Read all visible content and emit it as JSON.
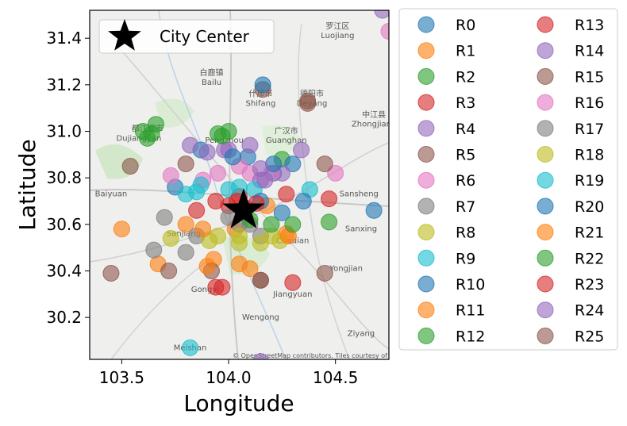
{
  "chart_data": {
    "type": "scatter",
    "title": "",
    "xlabel": "Longitude",
    "ylabel": "Latitude",
    "xlim": [
      103.35,
      104.75
    ],
    "ylim": [
      30.02,
      31.52
    ],
    "xticks": [
      103.5,
      104.0,
      104.5
    ],
    "xtick_labels": [
      "103.5",
      "104.0",
      "104.5"
    ],
    "yticks": [
      30.2,
      30.4,
      30.6,
      30.8,
      31.0,
      31.2,
      31.4
    ],
    "ytick_labels": [
      "30.2",
      "30.4",
      "30.6",
      "30.8",
      "31.0",
      "31.2",
      "31.4"
    ],
    "grid": false,
    "basemap_attribution": "© OpenStreetMap contributors. Tiles courtesy of",
    "map_labels": [
      {
        "text": "什邡市",
        "lon": 104.15,
        "lat": 31.15
      },
      {
        "text": "Shifang",
        "lon": 104.15,
        "lat": 31.11
      },
      {
        "text": "德阳市",
        "lon": 104.39,
        "lat": 31.15
      },
      {
        "text": "Deyang",
        "lon": 104.39,
        "lat": 31.11
      },
      {
        "text": "罗江区",
        "lon": 104.51,
        "lat": 31.44
      },
      {
        "text": "Luojiang",
        "lon": 104.51,
        "lat": 31.4
      },
      {
        "text": "中江县",
        "lon": 104.68,
        "lat": 31.06
      },
      {
        "text": "Zhongjiang",
        "lon": 104.68,
        "lat": 31.02
      },
      {
        "text": "白鹿镇",
        "lon": 103.92,
        "lat": 31.24
      },
      {
        "text": "Bailu",
        "lon": 103.92,
        "lat": 31.2
      },
      {
        "text": "都江堰市",
        "lon": 103.62,
        "lat": 31.0
      },
      {
        "text": "Dujiangyan",
        "lon": 103.58,
        "lat": 30.96
      },
      {
        "text": "广汉市",
        "lon": 104.27,
        "lat": 30.99
      },
      {
        "text": "Guanghan",
        "lon": 104.27,
        "lat": 30.95
      },
      {
        "text": "Pengzhou",
        "lon": 103.98,
        "lat": 30.95
      },
      {
        "text": "Sansheng",
        "lon": 104.61,
        "lat": 30.72
      },
      {
        "text": "Sanxing",
        "lon": 104.62,
        "lat": 30.57
      },
      {
        "text": "Chadian",
        "lon": 104.3,
        "lat": 30.52
      },
      {
        "text": "Sanjiang",
        "lon": 103.79,
        "lat": 30.55
      },
      {
        "text": "Gongyi",
        "lon": 103.89,
        "lat": 30.31
      },
      {
        "text": "Jiangyuan",
        "lon": 104.3,
        "lat": 30.29
      },
      {
        "text": "Wengong",
        "lon": 104.15,
        "lat": 30.19
      },
      {
        "text": "Meishan",
        "lon": 103.82,
        "lat": 30.06
      },
      {
        "text": "Ziyang",
        "lon": 104.62,
        "lat": 30.12
      },
      {
        "text": "Yongjian",
        "lon": 104.55,
        "lat": 30.4
      },
      {
        "text": "Baiyuan",
        "lon": 103.45,
        "lat": 30.72
      }
    ],
    "city_center": {
      "name": "City Center",
      "lon": 104.07,
      "lat": 30.66
    },
    "legend": {
      "placement": "outside-right",
      "columns": 2
    },
    "series": [
      {
        "name": "R0",
        "color": "#1f77b4",
        "points": [
          [
            104.09,
            30.89
          ],
          [
            104.21,
            30.82
          ],
          [
            103.75,
            30.76
          ],
          [
            103.87,
            30.92
          ]
        ]
      },
      {
        "name": "R1",
        "color": "#ff7f0e",
        "points": [
          [
            103.93,
            30.45
          ],
          [
            104.03,
            30.58
          ],
          [
            104.18,
            30.68
          ],
          [
            103.8,
            30.6
          ]
        ]
      },
      {
        "name": "R2",
        "color": "#2ca02c",
        "points": [
          [
            103.62,
            30.97
          ],
          [
            103.95,
            30.99
          ],
          [
            104.25,
            30.88
          ],
          [
            104.47,
            30.61
          ]
        ]
      },
      {
        "name": "R3",
        "color": "#d62728",
        "points": [
          [
            104.05,
            30.72
          ],
          [
            103.97,
            30.33
          ],
          [
            104.27,
            30.73
          ],
          [
            103.94,
            30.7
          ]
        ]
      },
      {
        "name": "R4",
        "color": "#9467bd",
        "points": [
          [
            104.1,
            30.94
          ],
          [
            104.34,
            30.92
          ],
          [
            103.98,
            30.92
          ],
          [
            104.15,
            30.01
          ]
        ]
      },
      {
        "name": "R5",
        "color": "#8c564b",
        "points": [
          [
            103.54,
            30.85
          ],
          [
            103.92,
            30.4
          ],
          [
            104.37,
            31.12
          ],
          [
            104.16,
            31.18
          ]
        ]
      },
      {
        "name": "R6",
        "color": "#e377c2",
        "points": [
          [
            104.1,
            30.82
          ],
          [
            103.95,
            30.82
          ],
          [
            104.5,
            30.82
          ],
          [
            103.73,
            30.81
          ]
        ]
      },
      {
        "name": "R7",
        "color": "#7f7f7f",
        "points": [
          [
            103.7,
            30.63
          ],
          [
            103.85,
            30.55
          ],
          [
            104.15,
            30.55
          ],
          [
            104.05,
            30.6
          ]
        ]
      },
      {
        "name": "R8",
        "color": "#bcbd22",
        "points": [
          [
            103.73,
            30.54
          ],
          [
            104.2,
            30.55
          ],
          [
            104.05,
            30.52
          ],
          [
            103.95,
            30.55
          ]
        ]
      },
      {
        "name": "R9",
        "color": "#17becf",
        "points": [
          [
            104.0,
            30.75
          ],
          [
            104.38,
            30.75
          ],
          [
            103.82,
            30.07
          ],
          [
            103.85,
            30.74
          ]
        ]
      },
      {
        "name": "R10",
        "color": "#1f77b4",
        "points": [
          [
            104.25,
            30.65
          ],
          [
            104.68,
            30.66
          ],
          [
            104.16,
            31.2
          ],
          [
            104.3,
            30.86
          ]
        ]
      },
      {
        "name": "R11",
        "color": "#ff7f0e",
        "points": [
          [
            103.67,
            30.43
          ],
          [
            103.9,
            30.42
          ],
          [
            104.1,
            30.41
          ],
          [
            104.27,
            30.56
          ]
        ]
      },
      {
        "name": "R12",
        "color": "#2ca02c",
        "points": [
          [
            103.6,
            31.0
          ],
          [
            103.66,
            31.03
          ],
          [
            104.0,
            31.0
          ],
          [
            104.2,
            30.6
          ]
        ]
      },
      {
        "name": "R13",
        "color": "#d62728",
        "points": [
          [
            104.08,
            30.67
          ],
          [
            104.0,
            30.68
          ],
          [
            104.47,
            30.71
          ],
          [
            104.3,
            30.35
          ]
        ]
      },
      {
        "name": "R14",
        "color": "#9467bd",
        "points": [
          [
            103.82,
            30.94
          ],
          [
            104.25,
            30.82
          ],
          [
            104.0,
            30.92
          ],
          [
            104.15,
            30.79
          ]
        ]
      },
      {
        "name": "R15",
        "color": "#8c564b",
        "points": [
          [
            103.8,
            30.86
          ],
          [
            104.15,
            30.36
          ],
          [
            104.45,
            30.86
          ],
          [
            103.72,
            30.4
          ]
        ]
      },
      {
        "name": "R16",
        "color": "#e377c2",
        "points": [
          [
            104.75,
            31.43
          ],
          [
            104.2,
            30.82
          ],
          [
            103.88,
            30.79
          ],
          [
            104.05,
            30.85
          ]
        ]
      },
      {
        "name": "R17",
        "color": "#7f7f7f",
        "points": [
          [
            103.65,
            30.49
          ],
          [
            103.8,
            30.48
          ],
          [
            104.0,
            30.63
          ],
          [
            104.1,
            30.6
          ]
        ]
      },
      {
        "name": "R18",
        "color": "#bcbd22",
        "points": [
          [
            103.91,
            30.53
          ],
          [
            104.15,
            30.52
          ],
          [
            104.24,
            30.53
          ],
          [
            104.05,
            30.55
          ]
        ]
      },
      {
        "name": "R19",
        "color": "#17becf",
        "points": [
          [
            103.87,
            30.77
          ],
          [
            104.05,
            30.76
          ],
          [
            104.12,
            30.75
          ],
          [
            103.8,
            30.73
          ]
        ]
      },
      {
        "name": "R20",
        "color": "#1f77b4",
        "points": [
          [
            104.21,
            30.86
          ],
          [
            104.02,
            30.89
          ],
          [
            104.35,
            30.7
          ],
          [
            104.15,
            30.7
          ]
        ]
      },
      {
        "name": "R21",
        "color": "#ff7f0e",
        "points": [
          [
            103.5,
            30.58
          ],
          [
            104.05,
            30.43
          ],
          [
            104.28,
            30.55
          ],
          [
            103.88,
            30.58
          ]
        ]
      },
      {
        "name": "R22",
        "color": "#2ca02c",
        "points": [
          [
            103.64,
            30.99
          ],
          [
            104.1,
            30.62
          ],
          [
            104.3,
            30.6
          ],
          [
            103.97,
            30.98
          ]
        ]
      },
      {
        "name": "R23",
        "color": "#d62728",
        "points": [
          [
            104.04,
            30.7
          ],
          [
            103.94,
            30.33
          ],
          [
            104.13,
            30.69
          ],
          [
            103.85,
            30.66
          ]
        ]
      },
      {
        "name": "R24",
        "color": "#9467bd",
        "points": [
          [
            104.17,
            30.79
          ],
          [
            104.72,
            31.52
          ],
          [
            103.9,
            30.91
          ],
          [
            104.15,
            30.84
          ]
        ]
      },
      {
        "name": "R25",
        "color": "#8c564b",
        "points": [
          [
            104.37,
            31.13
          ],
          [
            104.45,
            30.39
          ],
          [
            104.15,
            30.36
          ],
          [
            103.45,
            30.39
          ]
        ]
      }
    ]
  }
}
